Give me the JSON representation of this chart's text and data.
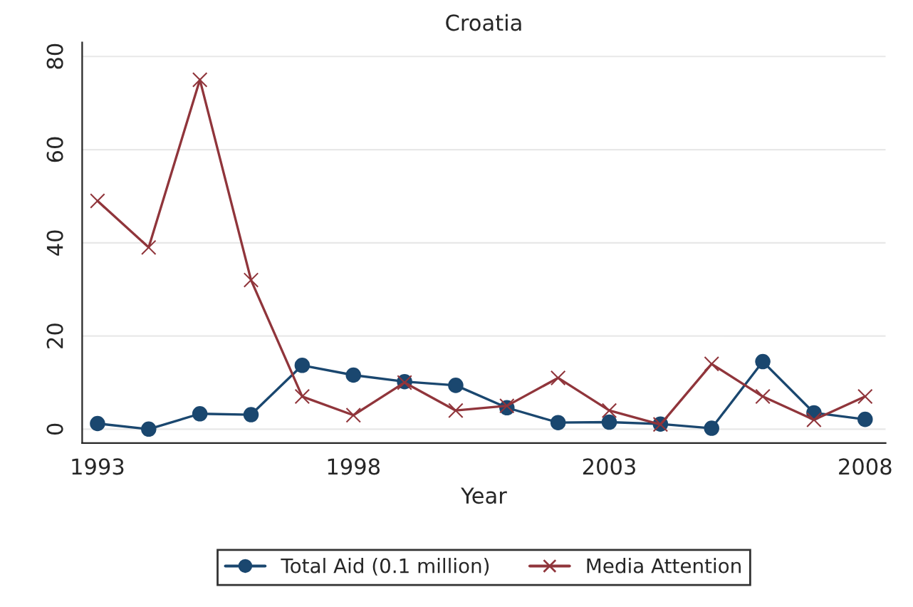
{
  "chart_data": {
    "type": "line",
    "title": "Croatia",
    "xlabel": "Year",
    "x": [
      1993,
      1994,
      1995,
      1996,
      1997,
      1998,
      1999,
      2000,
      2001,
      2002,
      2003,
      2004,
      2005,
      2006,
      2007,
      2008
    ],
    "series": [
      {
        "name": "Total Aid (0.1 million)",
        "color": "#1a476f",
        "marker": "circle",
        "values": [
          1.2,
          0,
          3.3,
          3.1,
          13.7,
          11.6,
          10.2,
          9.4,
          4.6,
          1.4,
          1.5,
          1.1,
          0.2,
          14.5,
          3.5,
          2.1
        ]
      },
      {
        "name": "Media Attention",
        "color": "#90353b",
        "marker": "cross",
        "values": [
          49,
          39,
          75,
          32,
          7,
          3,
          10,
          4,
          5,
          11,
          4,
          1,
          14,
          7,
          2,
          7
        ]
      }
    ],
    "xlim": [
      1992.7,
      2008.4
    ],
    "xticks": [
      1993,
      1998,
      2003,
      2008
    ],
    "ylim": [
      -3,
      83
    ],
    "yticks": [
      0,
      20,
      40,
      60,
      80
    ],
    "grid": "y",
    "legend": "bottom",
    "line_style": "solid"
  }
}
